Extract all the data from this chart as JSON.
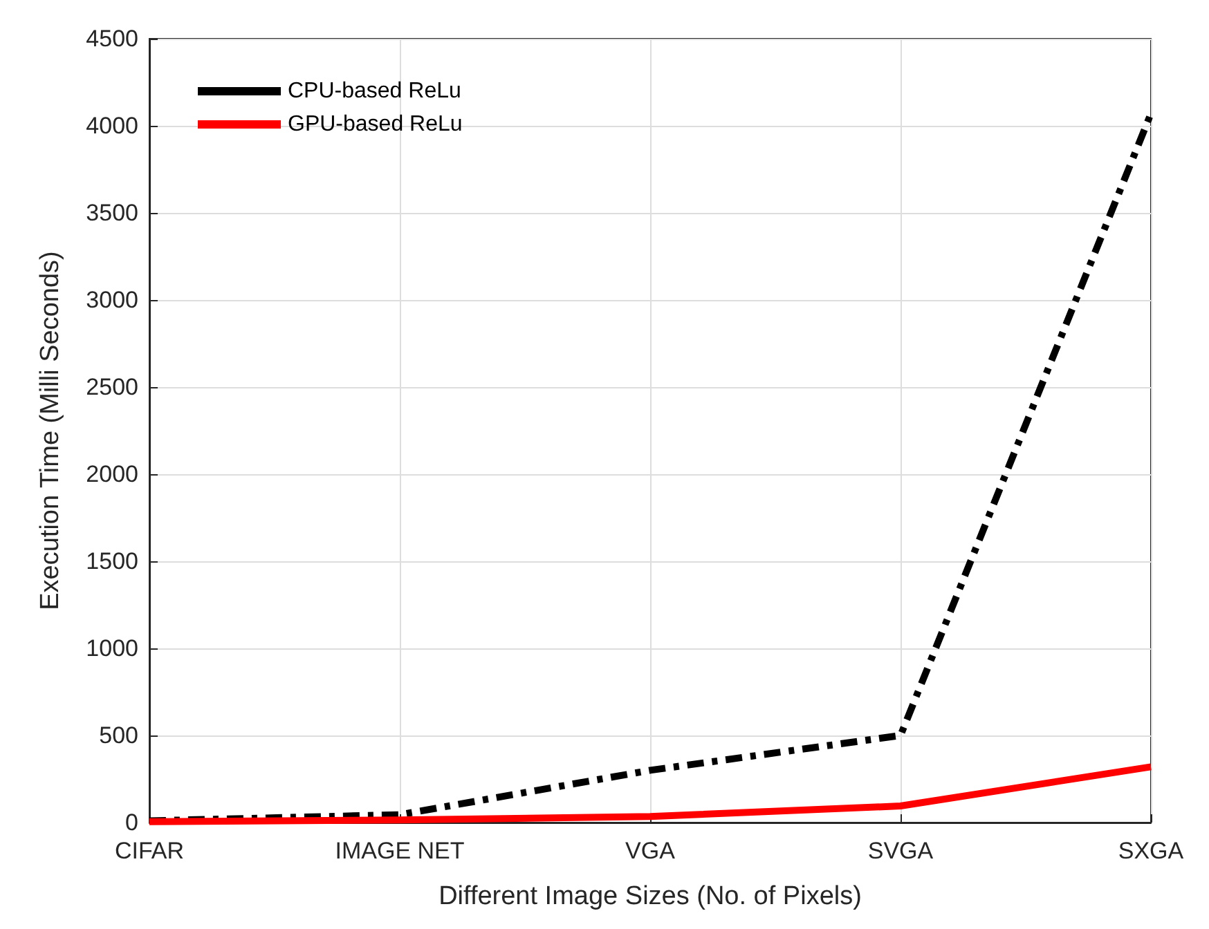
{
  "chart_data": {
    "type": "line",
    "xlabel": "Different Image Sizes (No. of Pixels)",
    "ylabel": "Execution Time (Milli Seconds)",
    "categories": [
      "CIFAR",
      "IMAGE NET",
      "VGA",
      "SVGA",
      "SXGA"
    ],
    "series": [
      {
        "name": "CPU-based ReLu",
        "color": "#000000",
        "line_style": "dashed",
        "values": [
          10,
          45,
          300,
          500,
          4070
        ]
      },
      {
        "name": "GPU-based ReLu",
        "color": "#ff0000",
        "line_style": "solid",
        "values": [
          5,
          15,
          35,
          95,
          320
        ]
      }
    ],
    "ylim": [
      0,
      4500
    ],
    "yticks": [
      0,
      500,
      1000,
      1500,
      2000,
      2500,
      3000,
      3500,
      4000,
      4500
    ],
    "grid": true,
    "legend": "top left",
    "marker": "none"
  }
}
